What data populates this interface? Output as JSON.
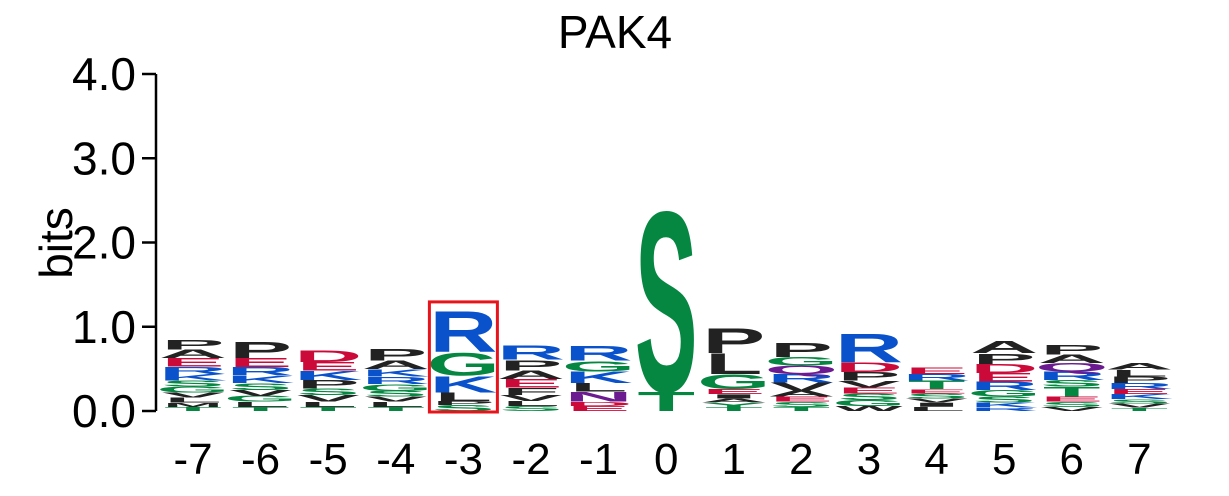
{
  "chart_data": {
    "type": "sequence-logo",
    "title": "PAK4",
    "ylabel": "bits",
    "ylim": [
      0,
      4.0
    ],
    "yticks": [
      "0.0",
      "1.0",
      "2.0",
      "3.0",
      "4.0"
    ],
    "positions": [
      "-7",
      "-6",
      "-5",
      "-4",
      "-3",
      "-2",
      "-1",
      "0",
      "1",
      "2",
      "3",
      "4",
      "5",
      "6",
      "7"
    ],
    "highlight_position": "-3",
    "highlight_color": "#e8141c",
    "residue_colors": {
      "P": "#222222",
      "A": "#222222",
      "L": "#222222",
      "V": "#222222",
      "I": "#222222",
      "M": "#222222",
      "F": "#222222",
      "W": "#222222",
      "R": "#0a52cc",
      "K": "#0a52cc",
      "H": "#0a52cc",
      "D": "#cc0a3a",
      "E": "#cc0a3a",
      "S": "#058742",
      "T": "#058742",
      "G": "#058742",
      "Y": "#058742",
      "C": "#058742",
      "N": "#6b1b8f",
      "Q": "#6b1b8f"
    },
    "columns": [
      [
        [
          "T",
          0.05
        ],
        [
          "M",
          0.05
        ],
        [
          "L",
          0.06
        ],
        [
          "V",
          0.06
        ],
        [
          "G",
          0.07
        ],
        [
          "S",
          0.07
        ],
        [
          "K",
          0.08
        ],
        [
          "R",
          0.09
        ],
        [
          "E",
          0.1
        ],
        [
          "A",
          0.1
        ],
        [
          "P",
          0.12
        ]
      ],
      [
        [
          "T",
          0.05
        ],
        [
          "L",
          0.06
        ],
        [
          "G",
          0.07
        ],
        [
          "V",
          0.07
        ],
        [
          "S",
          0.08
        ],
        [
          "K",
          0.09
        ],
        [
          "R",
          0.1
        ],
        [
          "E",
          0.11
        ],
        [
          "P",
          0.2
        ]
      ],
      [
        [
          "T",
          0.05
        ],
        [
          "L",
          0.06
        ],
        [
          "V",
          0.08
        ],
        [
          "S",
          0.08
        ],
        [
          "P",
          0.1
        ],
        [
          "K",
          0.11
        ],
        [
          "E",
          0.1
        ],
        [
          "D",
          0.14
        ]
      ],
      [
        [
          "T",
          0.05
        ],
        [
          "L",
          0.06
        ],
        [
          "V",
          0.06
        ],
        [
          "S",
          0.07
        ],
        [
          "G",
          0.08
        ],
        [
          "R",
          0.09
        ],
        [
          "K",
          0.09
        ],
        [
          "A",
          0.1
        ],
        [
          "P",
          0.14
        ]
      ],
      [
        [
          "S",
          0.07
        ],
        [
          "P",
          0.05
        ],
        [
          "L",
          0.1
        ],
        [
          "K",
          0.2
        ],
        [
          "G",
          0.28
        ],
        [
          "R",
          0.5
        ]
      ],
      [
        [
          "S",
          0.06
        ],
        [
          "L",
          0.06
        ],
        [
          "V",
          0.07
        ],
        [
          "F",
          0.09
        ],
        [
          "E",
          0.1
        ],
        [
          "A",
          0.1
        ],
        [
          "P",
          0.13
        ],
        [
          "R",
          0.17
        ]
      ],
      [
        [
          "E",
          0.06
        ],
        [
          "D",
          0.05
        ],
        [
          "N",
          0.12
        ],
        [
          "L",
          0.1
        ],
        [
          "K",
          0.14
        ],
        [
          "G",
          0.13
        ],
        [
          "R",
          0.18
        ]
      ],
      [
        [
          "T",
          0.24
        ],
        [
          "S",
          2.2
        ]
      ],
      [
        [
          "T",
          0.05
        ],
        [
          "Y",
          0.05
        ],
        [
          "A",
          0.05
        ],
        [
          "I",
          0.05
        ],
        [
          "E",
          0.06
        ],
        [
          "G",
          0.18
        ],
        [
          "L",
          0.25
        ],
        [
          "P",
          0.3
        ]
      ],
      [
        [
          "T",
          0.05
        ],
        [
          "S",
          0.06
        ],
        [
          "E",
          0.06
        ],
        [
          "A",
          0.07
        ],
        [
          "V",
          0.1
        ],
        [
          "R",
          0.1
        ],
        [
          "Q",
          0.1
        ],
        [
          "G",
          0.1
        ],
        [
          "P",
          0.17
        ]
      ],
      [
        [
          "W",
          0.06
        ],
        [
          "G",
          0.07
        ],
        [
          "S",
          0.08
        ],
        [
          "E",
          0.07
        ],
        [
          "V",
          0.08
        ],
        [
          "P",
          0.1
        ],
        [
          "D",
          0.12
        ],
        [
          "R",
          0.35
        ]
      ],
      [
        [
          "L",
          0.05
        ],
        [
          "I",
          0.05
        ],
        [
          "V",
          0.05
        ],
        [
          "S",
          0.06
        ],
        [
          "E",
          0.05
        ],
        [
          "T",
          0.1
        ],
        [
          "R",
          0.08
        ],
        [
          "E",
          0.08
        ]
      ],
      [
        [
          "R",
          0.04
        ],
        [
          "K",
          0.06
        ],
        [
          "S",
          0.07
        ],
        [
          "G",
          0.08
        ],
        [
          "R",
          0.1
        ],
        [
          "E",
          0.1
        ],
        [
          "D",
          0.11
        ],
        [
          "P",
          0.13
        ],
        [
          "A",
          0.15
        ]
      ],
      [
        [
          "V",
          0.05
        ],
        [
          "S",
          0.06
        ],
        [
          "E",
          0.06
        ],
        [
          "T",
          0.12
        ],
        [
          "S",
          0.08
        ],
        [
          "R",
          0.1
        ],
        [
          "Q",
          0.1
        ],
        [
          "A",
          0.1
        ],
        [
          "P",
          0.12
        ]
      ],
      [
        [
          "T",
          0.04
        ],
        [
          "V",
          0.05
        ],
        [
          "S",
          0.05
        ],
        [
          "K",
          0.06
        ],
        [
          "E",
          0.06
        ],
        [
          "R",
          0.07
        ],
        [
          "P",
          0.08
        ],
        [
          "L",
          0.08
        ],
        [
          "A",
          0.08
        ]
      ]
    ]
  }
}
